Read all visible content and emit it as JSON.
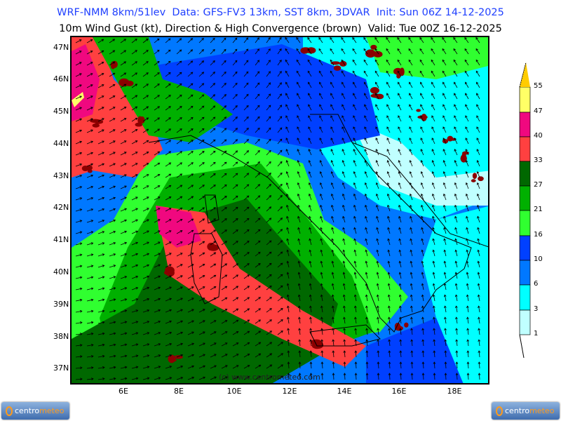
{
  "header": {
    "line1": "WRF-NMM 8km/51lev  Data: GFS-FV3 13km, SST 8km, 3DVAR  Init: Sun 06Z 14-12-2025",
    "line2": "10m Wind Gust (kt), Direction & High Convergence (brown)  Valid: Tue 00Z 16-12-2025"
  },
  "map": {
    "lat_labels": [
      "47N",
      "46N",
      "45N",
      "44N",
      "43N",
      "42N",
      "41N",
      "40N",
      "39N",
      "38N",
      "37N"
    ],
    "lon_labels": [
      "6E",
      "8E",
      "10E",
      "12E",
      "14E",
      "16E",
      "18E"
    ],
    "watermark": "(c) www.centrometeo.com",
    "convergence_color": "#8b0000"
  },
  "colorbar": {
    "levels": [
      "55",
      "47",
      "40",
      "33",
      "27",
      "21",
      "16",
      "10",
      "6",
      "3",
      "1"
    ],
    "colors": [
      "#ffcc00",
      "#ffff66",
      "#f0087f",
      "#ff4040",
      "#006800",
      "#00b000",
      "#30ff30",
      "#0040ff",
      "#0078ff",
      "#00ffff",
      "#c0ffff"
    ]
  },
  "logos": {
    "left": {
      "part1": "centro",
      "part2": "meteo"
    },
    "right": {
      "part1": "centro",
      "part2": "meteo"
    }
  }
}
